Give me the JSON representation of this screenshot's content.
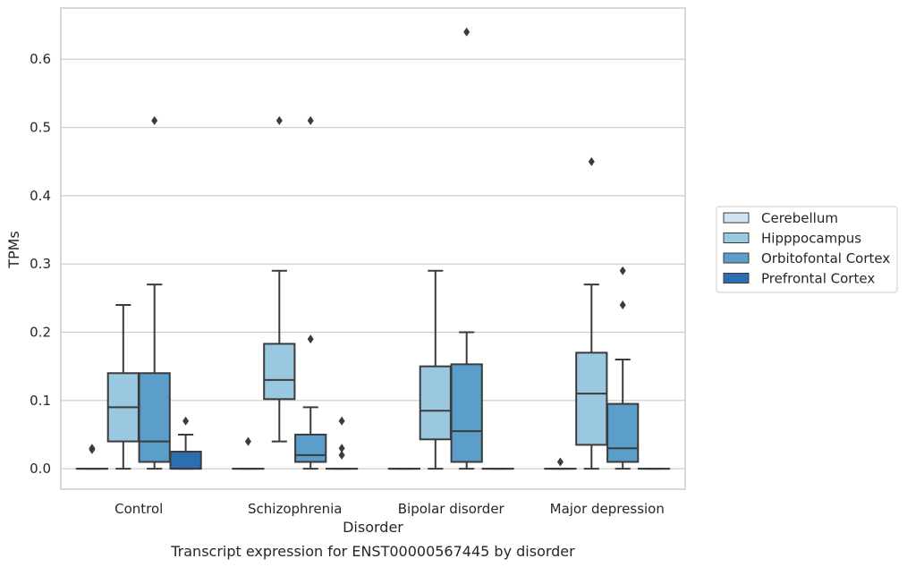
{
  "chart_data": {
    "type": "box",
    "caption": "Transcript expression for ENST00000567445 by disorder",
    "xlabel": "Disorder",
    "ylabel": "TPMs",
    "ylim": [
      -0.03,
      0.675
    ],
    "yticks": [
      "0.0",
      "0.1",
      "0.2",
      "0.3",
      "0.4",
      "0.5",
      "0.6"
    ],
    "grid": true,
    "legend_position": "right",
    "categories": [
      "Control",
      "Schizophrenia",
      "Bipolar disorder",
      "Major depression"
    ],
    "series": [
      {
        "name": "Cerebellum",
        "color": "#d1e2f2",
        "boxes": [
          {
            "min": 0,
            "q1": 0,
            "median": 0,
            "q3": 0,
            "max": 0,
            "outliers": [
              0.03,
              0.028
            ]
          },
          {
            "min": 0,
            "q1": 0,
            "median": 0,
            "q3": 0,
            "max": 0,
            "outliers": [
              0.04
            ]
          },
          {
            "min": 0,
            "q1": 0,
            "median": 0,
            "q3": 0,
            "max": 0,
            "outliers": []
          },
          {
            "min": 0,
            "q1": 0,
            "median": 0,
            "q3": 0,
            "max": 0,
            "outliers": [
              0.01
            ]
          }
        ]
      },
      {
        "name": "Hipppocampus",
        "color": "#9ac8e0",
        "boxes": [
          {
            "min": 0,
            "q1": 0.04,
            "median": 0.09,
            "q3": 0.14,
            "max": 0.24,
            "outliers": []
          },
          {
            "min": 0.04,
            "q1": 0.102,
            "median": 0.13,
            "q3": 0.183,
            "max": 0.29,
            "outliers": [
              0.51
            ]
          },
          {
            "min": 0,
            "q1": 0.043,
            "median": 0.085,
            "q3": 0.15,
            "max": 0.29,
            "outliers": []
          },
          {
            "min": 0,
            "q1": 0.035,
            "median": 0.11,
            "q3": 0.17,
            "max": 0.27,
            "outliers": [
              0.45
            ]
          }
        ]
      },
      {
        "name": "Orbitofontal Cortex",
        "color": "#5a9ec9",
        "boxes": [
          {
            "min": 0,
            "q1": 0.01,
            "median": 0.04,
            "q3": 0.14,
            "max": 0.27,
            "outliers": [
              0.51
            ]
          },
          {
            "min": 0,
            "q1": 0.01,
            "median": 0.02,
            "q3": 0.05,
            "max": 0.09,
            "outliers": [
              0.19,
              0.51
            ]
          },
          {
            "min": 0,
            "q1": 0.01,
            "median": 0.055,
            "q3": 0.153,
            "max": 0.2,
            "outliers": [
              0.64
            ]
          },
          {
            "min": 0,
            "q1": 0.01,
            "median": 0.03,
            "q3": 0.095,
            "max": 0.16,
            "outliers": [
              0.24,
              0.29
            ]
          }
        ]
      },
      {
        "name": "Prefrontal Cortex",
        "color": "#2c6fb0",
        "boxes": [
          {
            "min": 0,
            "q1": 0,
            "median": 0,
            "q3": 0.025,
            "max": 0.05,
            "outliers": [
              0.07
            ]
          },
          {
            "min": 0,
            "q1": 0,
            "median": 0,
            "q3": 0,
            "max": 0,
            "outliers": [
              0.02,
              0.03,
              0.07
            ]
          },
          {
            "min": 0,
            "q1": 0,
            "median": 0,
            "q3": 0,
            "max": 0,
            "outliers": []
          },
          {
            "min": 0,
            "q1": 0,
            "median": 0,
            "q3": 0,
            "max": 0,
            "outliers": []
          }
        ]
      }
    ]
  }
}
